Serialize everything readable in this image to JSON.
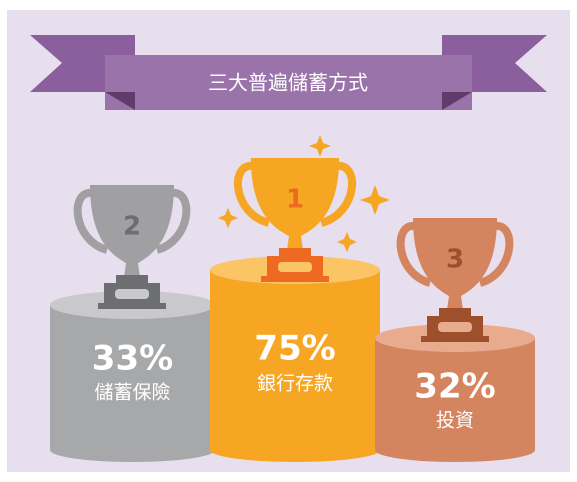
{
  "title": "三大普遍儲蓄方式",
  "podiums": [
    {
      "rank": "2",
      "value": "33%",
      "label": "儲蓄保險"
    },
    {
      "rank": "1",
      "value": "75%",
      "label": "銀行存款"
    },
    {
      "rank": "3",
      "value": "32%",
      "label": "投資"
    }
  ]
}
